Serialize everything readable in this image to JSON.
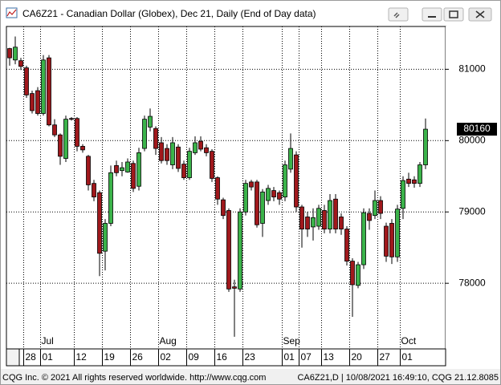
{
  "window": {
    "title": "CA6Z21 - Canadian Dollar (Globex), Dec 21, Daily (End of Day data)"
  },
  "chart_data": {
    "type": "candlestick",
    "up_color": "#3bb34a",
    "down_color": "#a0181c",
    "grid": true,
    "ylim": [
      77080,
      81600
    ],
    "yticks": [
      78000,
      79000,
      80000,
      81000
    ],
    "last_price": 80160,
    "xticks": [
      {
        "value": 3,
        "label": "28"
      },
      {
        "value": 6,
        "label": "01"
      },
      {
        "value": 12,
        "label": "12"
      },
      {
        "value": 17,
        "label": "19"
      },
      {
        "value": 22,
        "label": "26"
      },
      {
        "value": 27,
        "label": "02"
      },
      {
        "value": 32,
        "label": "09"
      },
      {
        "value": 37,
        "label": "16"
      },
      {
        "value": 42,
        "label": "23"
      },
      {
        "value": 49,
        "label": "01"
      },
      {
        "value": 52,
        "label": "07"
      },
      {
        "value": 56,
        "label": "13"
      },
      {
        "value": 61,
        "label": "20"
      },
      {
        "value": 66,
        "label": "27"
      },
      {
        "value": 70,
        "label": "01"
      }
    ],
    "months": [
      {
        "value": 6,
        "label": "Jul"
      },
      {
        "value": 27,
        "label": "Aug"
      },
      {
        "value": 49,
        "label": "Sep"
      },
      {
        "value": 70,
        "label": "Oct"
      }
    ],
    "open": [
      81290,
      81130,
      81120,
      81020,
      80660,
      80700,
      80380,
      81160,
      80220,
      80080,
      79750,
      80310,
      80310,
      79920,
      79780,
      79400,
      79270,
      78450,
      78840,
      79650,
      79580,
      79560,
      79680,
      79360,
      79890,
      80190,
      80170,
      79970,
      79890,
      79660,
      79910,
      79670,
      79480,
      79830,
      79990,
      79900,
      79850,
      79480,
      79170,
      79020,
      77950,
      77920,
      79000,
      79420,
      79420,
      78840,
      79160,
      79300,
      79270,
      79210,
      79600,
      79800,
      79070,
      78930,
      78790,
      78800,
      79020,
      78760,
      79180,
      78930,
      78760,
      78310,
      77970,
      78260,
      78980,
      78950,
      79160,
      78800,
      78840,
      78370,
      79050,
      79460,
      79450,
      79400,
      79660
    ],
    "high": [
      81300,
      81460,
      81160,
      81050,
      80700,
      80750,
      81200,
      81200,
      80300,
      80100,
      80350,
      80330,
      80330,
      79950,
      79800,
      79450,
      79300,
      78900,
      79650,
      79720,
      79700,
      79750,
      79720,
      79900,
      80350,
      80450,
      80200,
      80050,
      79950,
      80050,
      79950,
      79720,
      79900,
      80060,
      80060,
      79950,
      79880,
      79500,
      79200,
      79050,
      78050,
      79050,
      79450,
      79450,
      79450,
      79320,
      79380,
      79350,
      79300,
      79720,
      80100,
      79850,
      79100,
      79000,
      79050,
      79100,
      79100,
      79250,
      79250,
      78980,
      78800,
      78350,
      78300,
      79050,
      79050,
      79300,
      79220,
      78850,
      78900,
      79100,
      79500,
      79550,
      79500,
      79700,
      80310
    ],
    "low": [
      81050,
      81070,
      80990,
      80600,
      80380,
      80350,
      80350,
      80200,
      80050,
      79660,
      79700,
      80280,
      79850,
      79830,
      79300,
      79150,
      78100,
      78180,
      78800,
      79500,
      79500,
      79550,
      79280,
      79300,
      79850,
      80130,
      79800,
      79680,
      79660,
      79600,
      79560,
      79450,
      79450,
      79800,
      79850,
      79780,
      79420,
      79100,
      78900,
      77880,
      77250,
      77880,
      78950,
      79300,
      78780,
      78650,
      79100,
      79150,
      79100,
      79150,
      79550,
      79000,
      78500,
      78650,
      78600,
      78750,
      78700,
      78700,
      78700,
      78680,
      78250,
      77530,
      77930,
      78200,
      78750,
      78900,
      78900,
      78300,
      78270,
      78300,
      78900,
      79350,
      79340,
      79350,
      79600
    ],
    "close": [
      81160,
      81310,
      81040,
      80640,
      80420,
      80380,
      81130,
      80220,
      80080,
      79780,
      80300,
      80300,
      79920,
      79870,
      79380,
      79210,
      78420,
      78840,
      79550,
      79550,
      79620,
      79700,
      79330,
      79830,
      80300,
      80340,
      79890,
      79720,
      79720,
      79970,
      79610,
      79480,
      79850,
      79970,
      79880,
      79830,
      79470,
      79180,
      78950,
      77920,
      77930,
      79000,
      79400,
      79350,
      78820,
      79280,
      79330,
      79210,
      79180,
      79660,
      79890,
      79070,
      78760,
      78760,
      78920,
      79050,
      78760,
      79160,
      78760,
      78760,
      78310,
      77980,
      78260,
      78990,
      78880,
      79160,
      78980,
      78380,
      78370,
      79040,
      79440,
      79400,
      79400,
      79660,
      80160
    ]
  },
  "footer": {
    "left": "CQG Inc. © 2021 All rights reserved worldwide. http://www.cqg.com",
    "right": "CA6Z21,D | 10/08/2021 16:49:10, CQG 21.12.8085"
  }
}
